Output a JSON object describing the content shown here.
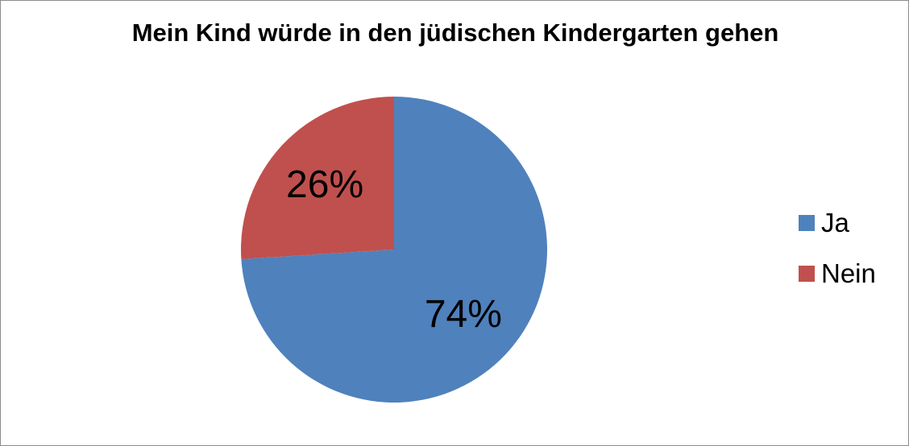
{
  "chart_data": {
    "type": "pie",
    "title": "Mein Kind würde in den jüdischen Kindergarten gehen",
    "categories": [
      "Ja",
      "Nein"
    ],
    "values": [
      74,
      26
    ],
    "labels": [
      "74%",
      "26%"
    ],
    "colors": [
      "#4F81BD",
      "#C0504D"
    ],
    "legend_position": "right"
  }
}
